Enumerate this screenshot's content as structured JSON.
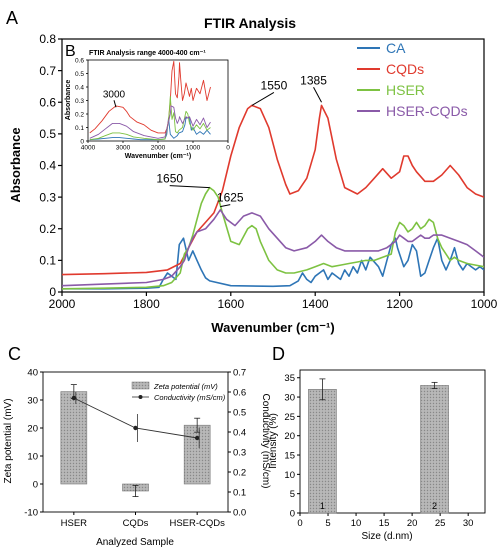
{
  "panels": {
    "A": "A",
    "B": "B",
    "C": "C",
    "D": "D"
  },
  "colors": {
    "CA": "#2e75b6",
    "CQDs": "#e03a2e",
    "HSER": "#7dc242",
    "HSER-CQDs": "#8a5aa8",
    "bar": "#aaaaaa",
    "line": "#333333"
  },
  "chart_data": [
    {
      "id": "A",
      "type": "line",
      "title": "FTIR Analysis",
      "xlabel": "Wavenumber (cm⁻¹)",
      "ylabel": "Absorbance",
      "xlim": [
        2000,
        1000
      ],
      "ylim": [
        0,
        0.8
      ],
      "x_ticks": [
        "2000",
        "1800",
        "1600",
        "1400",
        "1200",
        "1000"
      ],
      "y_ticks": [
        "0",
        "0.1",
        "0.2",
        "0.3",
        "0.4",
        "0.5",
        "0.6",
        "0.7",
        "0.8"
      ],
      "legend": [
        "CA",
        "CQDs",
        "HSER",
        "HSER-CQDs"
      ],
      "legend_position": "top-right",
      "annotations": [
        {
          "text": "1550",
          "x": 1550,
          "y": 0.59
        },
        {
          "text": "1385",
          "x": 1385,
          "y": 0.6
        },
        {
          "text": "1650",
          "x": 1650,
          "y": 0.33
        },
        {
          "text": "1625",
          "x": 1625,
          "y": 0.27
        }
      ],
      "series": [
        {
          "name": "CA",
          "x": [
            2000,
            1900,
            1800,
            1770,
            1760,
            1750,
            1730,
            1722,
            1712,
            1700,
            1690,
            1680,
            1670,
            1660,
            1650,
            1600,
            1500,
            1460,
            1440,
            1430,
            1420,
            1410,
            1400,
            1380,
            1370,
            1360,
            1340,
            1330,
            1320,
            1310,
            1300,
            1290,
            1280,
            1270,
            1250,
            1240,
            1230,
            1220,
            1210,
            1205,
            1200,
            1190,
            1180,
            1170,
            1160,
            1150,
            1140,
            1130,
            1120,
            1110,
            1100,
            1090,
            1080,
            1070,
            1060,
            1050,
            1040,
            1030,
            1020,
            1010,
            1000
          ],
          "y": [
            0.01,
            0.01,
            0.012,
            0.015,
            0.04,
            0.06,
            0.04,
            0.15,
            0.17,
            0.1,
            0.13,
            0.1,
            0.07,
            0.045,
            0.035,
            0.02,
            0.018,
            0.02,
            0.035,
            0.06,
            0.04,
            0.03,
            0.05,
            0.07,
            0.04,
            0.06,
            0.04,
            0.07,
            0.05,
            0.08,
            0.06,
            0.1,
            0.07,
            0.11,
            0.08,
            0.05,
            0.1,
            0.15,
            0.17,
            0.14,
            0.12,
            0.08,
            0.1,
            0.15,
            0.13,
            0.05,
            0.06,
            0.1,
            0.14,
            0.17,
            0.1,
            0.07,
            0.1,
            0.14,
            0.09,
            0.07,
            0.09,
            0.08,
            0.07,
            0.08,
            0.07
          ]
        },
        {
          "name": "CQDs",
          "x": [
            2000,
            1900,
            1800,
            1750,
            1720,
            1700,
            1680,
            1660,
            1640,
            1620,
            1600,
            1580,
            1560,
            1550,
            1530,
            1510,
            1490,
            1470,
            1460,
            1440,
            1420,
            1400,
            1390,
            1385,
            1370,
            1350,
            1330,
            1300,
            1280,
            1260,
            1240,
            1220,
            1200,
            1190,
            1180,
            1170,
            1160,
            1140,
            1120,
            1100,
            1080,
            1060,
            1040,
            1020,
            1000
          ],
          "y": [
            0.055,
            0.058,
            0.062,
            0.07,
            0.09,
            0.14,
            0.19,
            0.22,
            0.25,
            0.32,
            0.43,
            0.52,
            0.58,
            0.59,
            0.58,
            0.52,
            0.42,
            0.34,
            0.31,
            0.32,
            0.36,
            0.45,
            0.55,
            0.59,
            0.55,
            0.42,
            0.33,
            0.31,
            0.33,
            0.36,
            0.39,
            0.36,
            0.38,
            0.43,
            0.43,
            0.4,
            0.38,
            0.35,
            0.35,
            0.37,
            0.4,
            0.37,
            0.33,
            0.31,
            0.3
          ]
        },
        {
          "name": "HSER",
          "x": [
            2000,
            1900,
            1800,
            1760,
            1740,
            1720,
            1710,
            1700,
            1690,
            1680,
            1670,
            1660,
            1650,
            1640,
            1630,
            1620,
            1600,
            1580,
            1560,
            1550,
            1540,
            1530,
            1510,
            1490,
            1470,
            1450,
            1420,
            1400,
            1380,
            1360,
            1340,
            1320,
            1300,
            1280,
            1260,
            1240,
            1220,
            1210,
            1200,
            1190,
            1180,
            1170,
            1160,
            1150,
            1140,
            1130,
            1120,
            1110,
            1100,
            1090,
            1080,
            1070,
            1060,
            1040,
            1020,
            1000
          ],
          "y": [
            0.01,
            0.012,
            0.015,
            0.02,
            0.03,
            0.06,
            0.12,
            0.14,
            0.18,
            0.23,
            0.28,
            0.31,
            0.33,
            0.32,
            0.3,
            0.25,
            0.16,
            0.15,
            0.2,
            0.21,
            0.2,
            0.16,
            0.1,
            0.07,
            0.06,
            0.06,
            0.07,
            0.08,
            0.09,
            0.08,
            0.085,
            0.09,
            0.095,
            0.1,
            0.1,
            0.11,
            0.12,
            0.19,
            0.22,
            0.21,
            0.19,
            0.2,
            0.22,
            0.2,
            0.21,
            0.23,
            0.22,
            0.17,
            0.14,
            0.12,
            0.1,
            0.11,
            0.1,
            0.09,
            0.085,
            0.08
          ]
        },
        {
          "name": "HSER-CQDs",
          "x": [
            2000,
            1900,
            1800,
            1760,
            1740,
            1720,
            1710,
            1700,
            1690,
            1680,
            1660,
            1640,
            1625,
            1610,
            1590,
            1570,
            1550,
            1530,
            1510,
            1490,
            1470,
            1450,
            1420,
            1400,
            1385,
            1370,
            1350,
            1330,
            1310,
            1290,
            1270,
            1250,
            1230,
            1210,
            1200,
            1190,
            1180,
            1170,
            1160,
            1150,
            1140,
            1130,
            1120,
            1100,
            1080,
            1060,
            1040,
            1020,
            1000
          ],
          "y": [
            0.02,
            0.025,
            0.03,
            0.04,
            0.05,
            0.08,
            0.1,
            0.14,
            0.17,
            0.19,
            0.2,
            0.23,
            0.26,
            0.23,
            0.21,
            0.24,
            0.25,
            0.24,
            0.2,
            0.17,
            0.14,
            0.13,
            0.14,
            0.16,
            0.18,
            0.16,
            0.14,
            0.13,
            0.13,
            0.13,
            0.13,
            0.13,
            0.14,
            0.16,
            0.18,
            0.17,
            0.16,
            0.16,
            0.17,
            0.18,
            0.17,
            0.17,
            0.18,
            0.18,
            0.17,
            0.16,
            0.15,
            0.13,
            0.11
          ]
        }
      ]
    },
    {
      "id": "B",
      "type": "line",
      "title": "FTIR Analysis range 4000-400 cm⁻¹",
      "xlabel": "Wavenumber (cm⁻¹)",
      "ylabel": "Absorbance",
      "xlim": [
        4000,
        0
      ],
      "ylim": [
        0,
        0.6
      ],
      "x_ticks": [
        "4000",
        "3000",
        "2000",
        "1000",
        "0"
      ],
      "y_ticks": [
        "0",
        "0.1",
        "0.2",
        "0.3",
        "0.4",
        "0.5",
        "0.6"
      ],
      "annotations": [
        {
          "text": "3000",
          "x": 3200,
          "y": 0.25
        }
      ],
      "series": [
        {
          "name": "CA",
          "x": [
            3950,
            3700,
            3500,
            3300,
            3100,
            2900,
            2700,
            2500,
            2200,
            2000,
            1800,
            1750,
            1700,
            1650,
            1550,
            1450,
            1400,
            1300,
            1230,
            1200,
            1100,
            1050,
            1000,
            900,
            800,
            700,
            600,
            500
          ],
          "y": [
            0.01,
            0.015,
            0.02,
            0.025,
            0.025,
            0.02,
            0.015,
            0.01,
            0.01,
            0.01,
            0.015,
            0.05,
            0.17,
            0.05,
            0.02,
            0.04,
            0.06,
            0.07,
            0.12,
            0.17,
            0.17,
            0.08,
            0.1,
            0.05,
            0.07,
            0.05,
            0.08,
            0.05
          ]
        },
        {
          "name": "CQDs",
          "x": [
            3950,
            3800,
            3600,
            3400,
            3200,
            3000,
            2900,
            2800,
            2600,
            2400,
            2200,
            2000,
            1800,
            1750,
            1700,
            1650,
            1600,
            1550,
            1500,
            1450,
            1400,
            1385,
            1350,
            1300,
            1250,
            1200,
            1150,
            1100,
            1050,
            1000,
            900,
            800,
            700,
            600,
            500
          ],
          "y": [
            0.06,
            0.09,
            0.15,
            0.22,
            0.26,
            0.25,
            0.22,
            0.18,
            0.14,
            0.12,
            0.08,
            0.06,
            0.06,
            0.09,
            0.15,
            0.3,
            0.52,
            0.59,
            0.35,
            0.32,
            0.48,
            0.58,
            0.45,
            0.3,
            0.35,
            0.43,
            0.38,
            0.33,
            0.39,
            0.3,
            0.39,
            0.35,
            0.45,
            0.3,
            0.4
          ]
        },
        {
          "name": "HSER",
          "x": [
            3950,
            3700,
            3500,
            3300,
            3100,
            2900,
            2700,
            2400,
            2000,
            1800,
            1700,
            1650,
            1600,
            1550,
            1500,
            1450,
            1400,
            1300,
            1200,
            1150,
            1100,
            1000,
            900,
            800,
            700,
            600,
            500
          ],
          "y": [
            0.01,
            0.02,
            0.04,
            0.06,
            0.06,
            0.05,
            0.03,
            0.02,
            0.01,
            0.015,
            0.14,
            0.33,
            0.16,
            0.21,
            0.07,
            0.06,
            0.08,
            0.1,
            0.22,
            0.2,
            0.13,
            0.08,
            0.12,
            0.09,
            0.13,
            0.08,
            0.1
          ]
        },
        {
          "name": "HSER-CQDs",
          "x": [
            3950,
            3700,
            3500,
            3300,
            3100,
            2900,
            2700,
            2400,
            2000,
            1800,
            1700,
            1650,
            1625,
            1550,
            1500,
            1450,
            1400,
            1385,
            1300,
            1200,
            1150,
            1100,
            1000,
            900,
            800,
            700,
            600,
            500
          ],
          "y": [
            0.02,
            0.05,
            0.09,
            0.13,
            0.13,
            0.11,
            0.07,
            0.04,
            0.02,
            0.03,
            0.14,
            0.2,
            0.26,
            0.25,
            0.17,
            0.13,
            0.16,
            0.18,
            0.13,
            0.18,
            0.17,
            0.18,
            0.11,
            0.16,
            0.12,
            0.17,
            0.1,
            0.14
          ]
        }
      ]
    },
    {
      "id": "C",
      "type": "bar",
      "xlabel": "Analyzed Sample",
      "ylabel": "Zeta potential (mV)",
      "y2label": "Conductivity (mS/cm)",
      "categories": [
        "HSER",
        "CQDs",
        "HSER-CQDs"
      ],
      "ylim": [
        -10,
        40
      ],
      "y2lim": [
        0,
        0.7
      ],
      "y_ticks": [
        "-10",
        "0",
        "10",
        "20",
        "30",
        "40"
      ],
      "y2_ticks": [
        "0.0",
        "0.1",
        "0.2",
        "0.3",
        "0.4",
        "0.5",
        "0.6",
        "0.7"
      ],
      "legend": [
        "Zeta potential (mV)",
        "Conductivity (mS/cm)"
      ],
      "legend_position": "top-right",
      "series": [
        {
          "name": "Zeta potential (mV)",
          "kind": "bar",
          "values": [
            33,
            -2.5,
            21
          ],
          "errors": [
            2.5,
            2,
            2.5
          ]
        },
        {
          "name": "Conductivity (mS/cm)",
          "kind": "line",
          "values": [
            0.57,
            0.42,
            0.37
          ],
          "errors": [
            0.03,
            0.07,
            0.05
          ]
        }
      ]
    },
    {
      "id": "D",
      "type": "bar",
      "xlabel": "Size (d.nm)",
      "ylabel": "Intensity (%)",
      "xlim": [
        0,
        33
      ],
      "ylim": [
        0,
        37
      ],
      "x_ticks": [
        "0",
        "5",
        "10",
        "15",
        "20",
        "25",
        "30"
      ],
      "y_ticks": [
        "0",
        "5",
        "10",
        "15",
        "20",
        "25",
        "30",
        "35"
      ],
      "bars": [
        {
          "label": "1",
          "x": 4,
          "value": 32,
          "error": 2.7
        },
        {
          "label": "2",
          "x": 24,
          "value": 33,
          "error": 0.8
        }
      ]
    }
  ]
}
